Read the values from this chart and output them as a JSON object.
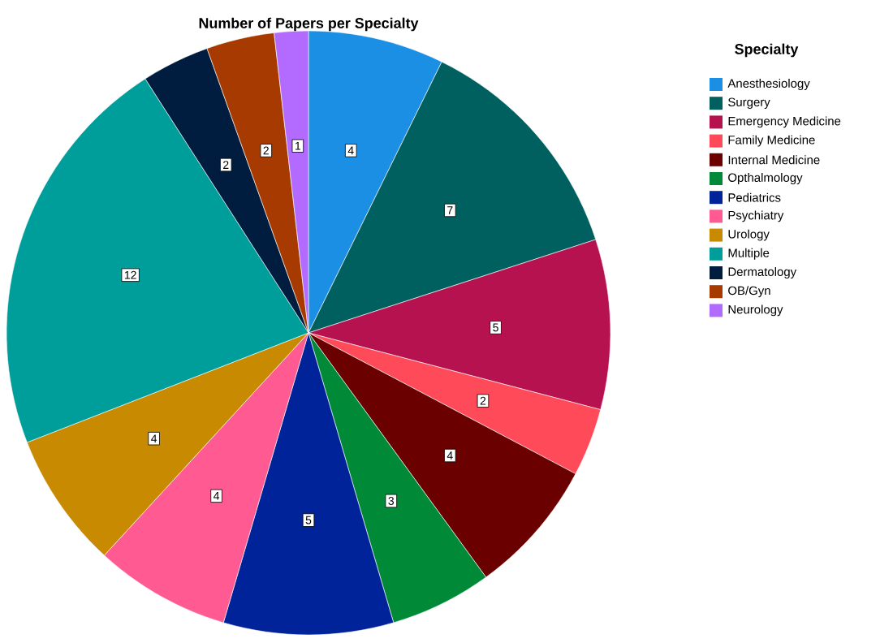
{
  "chart_data": {
    "type": "pie",
    "title": "Number of Papers per Specialty",
    "legend_title": "Specialty",
    "legend": "right",
    "data_labels": true,
    "categories": [
      "Anesthesiology",
      "Surgery",
      "Emergency Medicine",
      "Family Medicine",
      "Internal Medicine",
      "Opthalmology",
      "Pediatrics",
      "Psychiatry",
      "Urology",
      "Multiple",
      "Dermatology",
      "OB/Gyn",
      "Neurology"
    ],
    "values": [
      4,
      7,
      5,
      2,
      4,
      3,
      5,
      4,
      4,
      12,
      2,
      2,
      1
    ],
    "colors": [
      "#1a8fe3",
      "#00605f",
      "#b5124f",
      "#ff4a5a",
      "#6b0000",
      "#008a37",
      "#00239a",
      "#ff5a92",
      "#c88a00",
      "#009e9a",
      "#001c3f",
      "#a63a00",
      "#b36bff"
    ]
  }
}
